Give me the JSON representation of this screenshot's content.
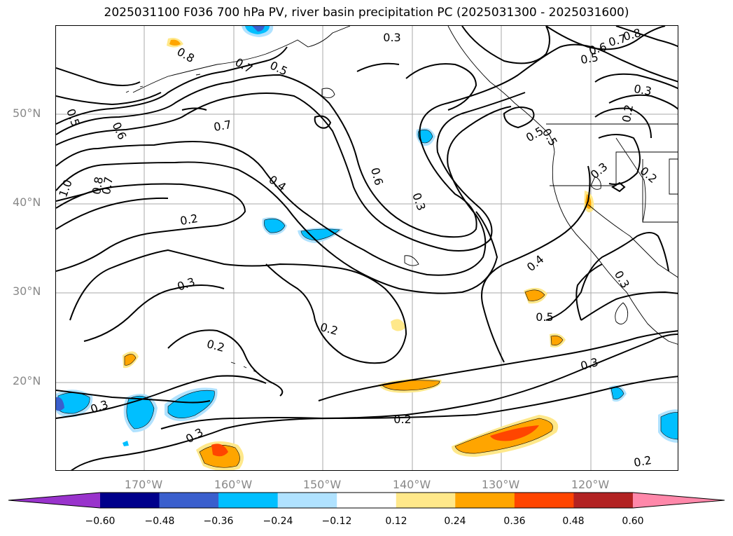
{
  "title": "2025031100 F036 700 hPa PV, river basin precipitation PC (2025031300 - 2025031600)",
  "lat_labels": [
    "50°N",
    "40°N",
    "30°N",
    "20°N"
  ],
  "lon_labels": [
    "170°W",
    "160°W",
    "150°W",
    "140°W",
    "130°W",
    "120°W"
  ],
  "contour_labels": [
    "0.3",
    "0.8",
    "0.7",
    "0.5",
    "0.6",
    "0.7",
    "0.5",
    "0.8",
    "0.3",
    "0.5",
    "0.6",
    "0.7",
    "0.4",
    "0.5",
    "0.5",
    "0.6",
    "0.3",
    "1.0",
    "0.8",
    "0.7",
    "0.2",
    "0.3",
    "0.2",
    "0.2",
    "0.4",
    "0.5",
    "0.3",
    "0.2",
    "0.3",
    "0.3",
    "0.2",
    "0.3",
    "0.2",
    "0.3",
    "0.2"
  ],
  "colorbar": {
    "ticks": [
      "−0.60",
      "−0.48",
      "−0.36",
      "−0.24",
      "−0.12",
      "0.12",
      "0.24",
      "0.36",
      "0.48",
      "0.60"
    ],
    "colors": [
      "#9933cc",
      "#00008b",
      "#3a5fcd",
      "#00bfff",
      "#b0e2ff",
      "#ffffff",
      "#ffe88a",
      "#ffa500",
      "#ff4500",
      "#b22222",
      "#ff88aa"
    ]
  }
}
